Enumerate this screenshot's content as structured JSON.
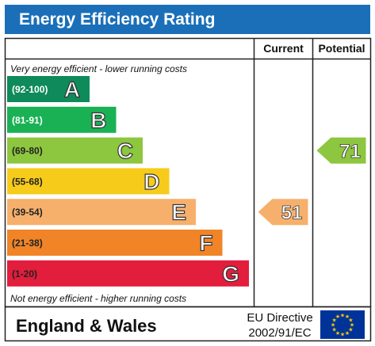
{
  "header": {
    "title": "Energy Efficiency Rating",
    "current_label": "Current",
    "potential_label": "Potential"
  },
  "notes": {
    "top": "Very energy efficient - lower running costs",
    "bottom": "Not energy efficient - higher running costs"
  },
  "footer": {
    "region": "England & Wales",
    "directive_line1": "EU Directive",
    "directive_line2": "2002/91/EC",
    "flag_icon": "eu-flag-icon"
  },
  "chart_data": {
    "type": "bar",
    "title": "Energy Efficiency Rating",
    "bands": [
      {
        "letter": "A",
        "range": "(92-100)",
        "color": "#0f8a5a",
        "text_color": "#ffffff"
      },
      {
        "letter": "B",
        "range": "(81-91)",
        "color": "#1ab154",
        "text_color": "#ffffff"
      },
      {
        "letter": "C",
        "range": "(69-80)",
        "color": "#8dc63f",
        "text_color": "#222222"
      },
      {
        "letter": "D",
        "range": "(55-68)",
        "color": "#f7cb1a",
        "text_color": "#222222"
      },
      {
        "letter": "E",
        "range": "(39-54)",
        "color": "#f6b06c",
        "text_color": "#222222"
      },
      {
        "letter": "F",
        "range": "(21-38)",
        "color": "#f08427",
        "text_color": "#222222"
      },
      {
        "letter": "G",
        "range": "(1-20)",
        "color": "#e31d3c",
        "text_color": "#222222"
      }
    ],
    "current": {
      "value": 51,
      "band": "E",
      "color": "#f6b06c"
    },
    "potential": {
      "value": 71,
      "band": "C",
      "color": "#8dc63f"
    }
  }
}
